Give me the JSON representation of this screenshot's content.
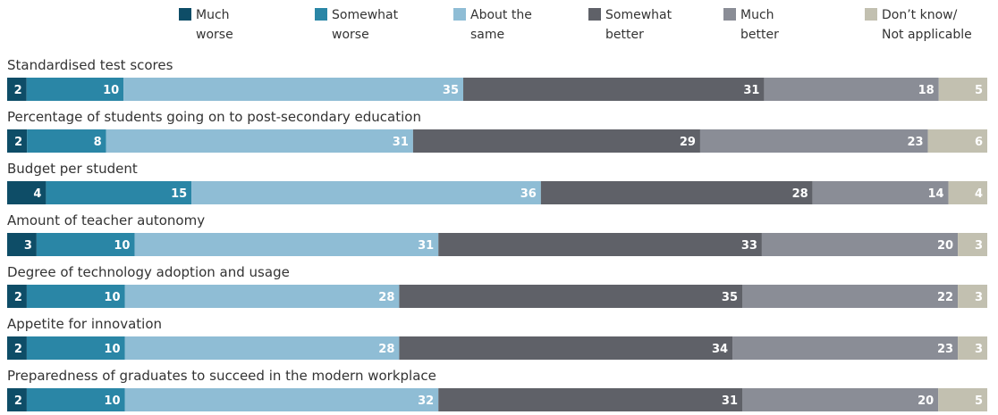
{
  "chart_data": {
    "type": "bar",
    "orientation": "horizontal",
    "stacked": true,
    "xlim": [
      0,
      100
    ],
    "grid": false,
    "legend_position": "top",
    "categories": [
      "Standardised test scores",
      "Percentage of students going on to post-secondary education",
      "Budget per student",
      "Amount of teacher autonomy",
      "Degree of technology adoption and usage",
      "Appetite for innovation",
      "Preparedness of graduates to succeed in the modern workplace"
    ],
    "series": [
      {
        "name": "Much worse",
        "legend_lines": [
          "Much",
          "worse"
        ],
        "color": "#0e4d67",
        "values": [
          2,
          2,
          4,
          3,
          2,
          2,
          2
        ]
      },
      {
        "name": "Somewhat worse",
        "legend_lines": [
          "Somewhat",
          "worse"
        ],
        "color": "#2a86a6",
        "values": [
          10,
          8,
          15,
          10,
          10,
          10,
          10
        ]
      },
      {
        "name": "About the same",
        "legend_lines": [
          "About the",
          "same"
        ],
        "color": "#8fbdd5",
        "values": [
          35,
          31,
          36,
          31,
          28,
          28,
          32
        ]
      },
      {
        "name": "Somewhat better",
        "legend_lines": [
          "Somewhat",
          "better"
        ],
        "color": "#5f6168",
        "values": [
          31,
          29,
          28,
          33,
          35,
          34,
          31
        ]
      },
      {
        "name": "Much better",
        "legend_lines": [
          "Much",
          "better"
        ],
        "color": "#8a8d96",
        "values": [
          18,
          23,
          14,
          20,
          22,
          23,
          20
        ]
      },
      {
        "name": "Don't know/ Not applicable",
        "legend_lines": [
          "Don’t know/",
          "Not applicable"
        ],
        "color": "#c2c0b0",
        "values": [
          5,
          6,
          4,
          3,
          3,
          3,
          5
        ]
      }
    ]
  }
}
